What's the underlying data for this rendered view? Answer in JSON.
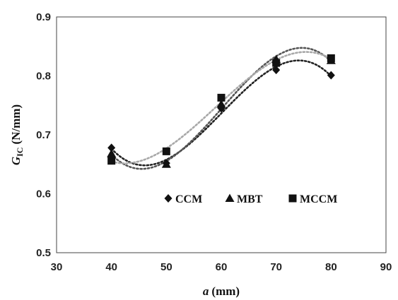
{
  "chart_data": {
    "type": "scatter",
    "xlabel": {
      "main": "a",
      "unit": "(mm)"
    },
    "ylabel": {
      "main": "G",
      "sub": "IC",
      "unit": "(N/mm)"
    },
    "xlim": [
      30,
      90
    ],
    "ylim": [
      0.5,
      0.9
    ],
    "xticks": [
      "30",
      "40",
      "50",
      "60",
      "70",
      "80",
      "90"
    ],
    "yticks": [
      "0.5",
      "0.6",
      "0.7",
      "0.8",
      "0.9"
    ],
    "grid": false,
    "legend_position": "inside-lower-middle",
    "trendline": "polynomial (dotted)",
    "x": [
      40,
      50,
      60,
      70,
      80
    ],
    "series": [
      {
        "name": "CCM",
        "marker": "diamond",
        "color": "#111111",
        "trend_color": "#222222",
        "values": [
          0.678,
          0.652,
          0.745,
          0.81,
          0.801
        ]
      },
      {
        "name": "MBT",
        "marker": "triangle",
        "color": "#111111",
        "trend_color": "#555555",
        "values": [
          0.668,
          0.65,
          0.752,
          0.828,
          0.826
        ]
      },
      {
        "name": "MCCM",
        "marker": "square",
        "color": "#111111",
        "trend_color": "#a8a8a8",
        "values": [
          0.656,
          0.672,
          0.763,
          0.822,
          0.83
        ]
      }
    ]
  }
}
